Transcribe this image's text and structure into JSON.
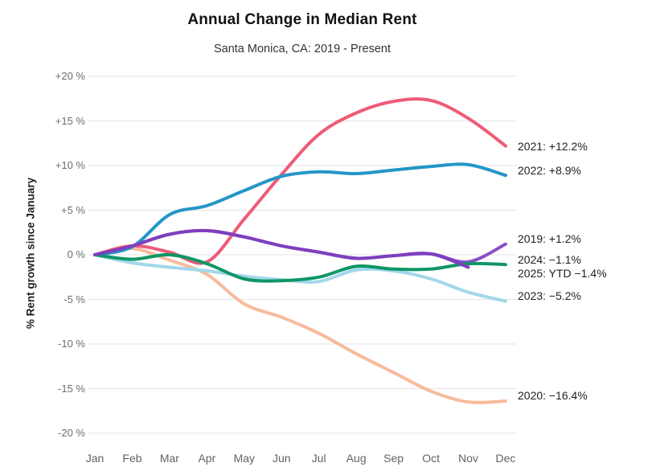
{
  "header": {
    "title": "Annual Change in Median Rent",
    "subtitle": "Santa Monica, CA: 2019 - Present"
  },
  "chart_data": {
    "type": "line",
    "title": "Annual Change in Median Rent",
    "subtitle": "Santa Monica, CA: 2019 - Present",
    "xlabel": "",
    "ylabel": "% Rent growth since January",
    "categories": [
      "Jan",
      "Feb",
      "Mar",
      "Apr",
      "May",
      "Jun",
      "Jul",
      "Aug",
      "Sep",
      "Oct",
      "Nov",
      "Dec"
    ],
    "ylim": [
      -20,
      20
    ],
    "grid": true,
    "legend_position": "right-end-labels",
    "yticks": [
      {
        "value": 20,
        "label": "+20 %"
      },
      {
        "value": 15,
        "label": "+15 %"
      },
      {
        "value": 10,
        "label": "+10 %"
      },
      {
        "value": 5,
        "label": "+5 %"
      },
      {
        "value": 0,
        "label": "0 %"
      },
      {
        "value": -5,
        "label": "-5 %"
      },
      {
        "value": -10,
        "label": "-10 %"
      },
      {
        "value": -15,
        "label": "-15 %"
      },
      {
        "value": -20,
        "label": "-20 %"
      }
    ],
    "series": [
      {
        "name": "2019",
        "color": "#8a4fc8",
        "end_label": "2019: +1.2%",
        "label_dy": -7,
        "values": [
          0,
          1.0,
          2.3,
          2.7,
          2.0,
          1.0,
          0.3,
          -0.4,
          -0.1,
          0.1,
          -0.8,
          1.2
        ]
      },
      {
        "name": "2020",
        "color": "#f6bb9c",
        "end_label": "2020: −16.4%",
        "label_dy": -7,
        "values": [
          0,
          0.7,
          -0.6,
          -2.2,
          -5.5,
          -7.0,
          -8.8,
          -11.1,
          -13.2,
          -15.3,
          -16.5,
          -16.4
        ]
      },
      {
        "name": "2023",
        "color": "#a3d7ea",
        "end_label": "2023: −5.2%",
        "label_dy": -7,
        "values": [
          0,
          -0.9,
          -1.4,
          -1.8,
          -2.4,
          -2.8,
          -3.0,
          -1.7,
          -1.8,
          -2.7,
          -4.2,
          -5.2
        ]
      },
      {
        "name": "2021",
        "color": "#ee5b76",
        "end_label": "2021: +12.2%",
        "label_dy": 0,
        "values": [
          0,
          1.0,
          0.3,
          -0.8,
          4.0,
          9.0,
          13.5,
          15.9,
          17.2,
          17.3,
          15.3,
          12.2
        ]
      },
      {
        "name": "2022",
        "color": "#2496c6",
        "end_label": "2022: +8.9%",
        "label_dy": -6,
        "values": [
          0,
          0.9,
          4.5,
          5.5,
          7.2,
          8.8,
          9.3,
          9.1,
          9.5,
          9.9,
          10.1,
          8.9
        ]
      },
      {
        "name": "2024",
        "color": "#0f9667",
        "end_label": "2024: −1.1%",
        "label_dy": -6,
        "values": [
          0,
          -0.5,
          0.0,
          -1.0,
          -2.7,
          -2.9,
          -2.5,
          -1.3,
          -1.6,
          -1.6,
          -1.0,
          -1.1
        ]
      },
      {
        "name": "2025",
        "color": "#7e3fbe",
        "end_label": "2025: YTD −1.4%",
        "label_dy": 7,
        "values": [
          0,
          1.0,
          2.3,
          2.7,
          2.0,
          1.0,
          0.3,
          -0.4,
          -0.1,
          0.1,
          -1.4,
          null
        ]
      }
    ],
    "style": {
      "grid_color": "#e3e3e3",
      "line_width": 4
    }
  }
}
